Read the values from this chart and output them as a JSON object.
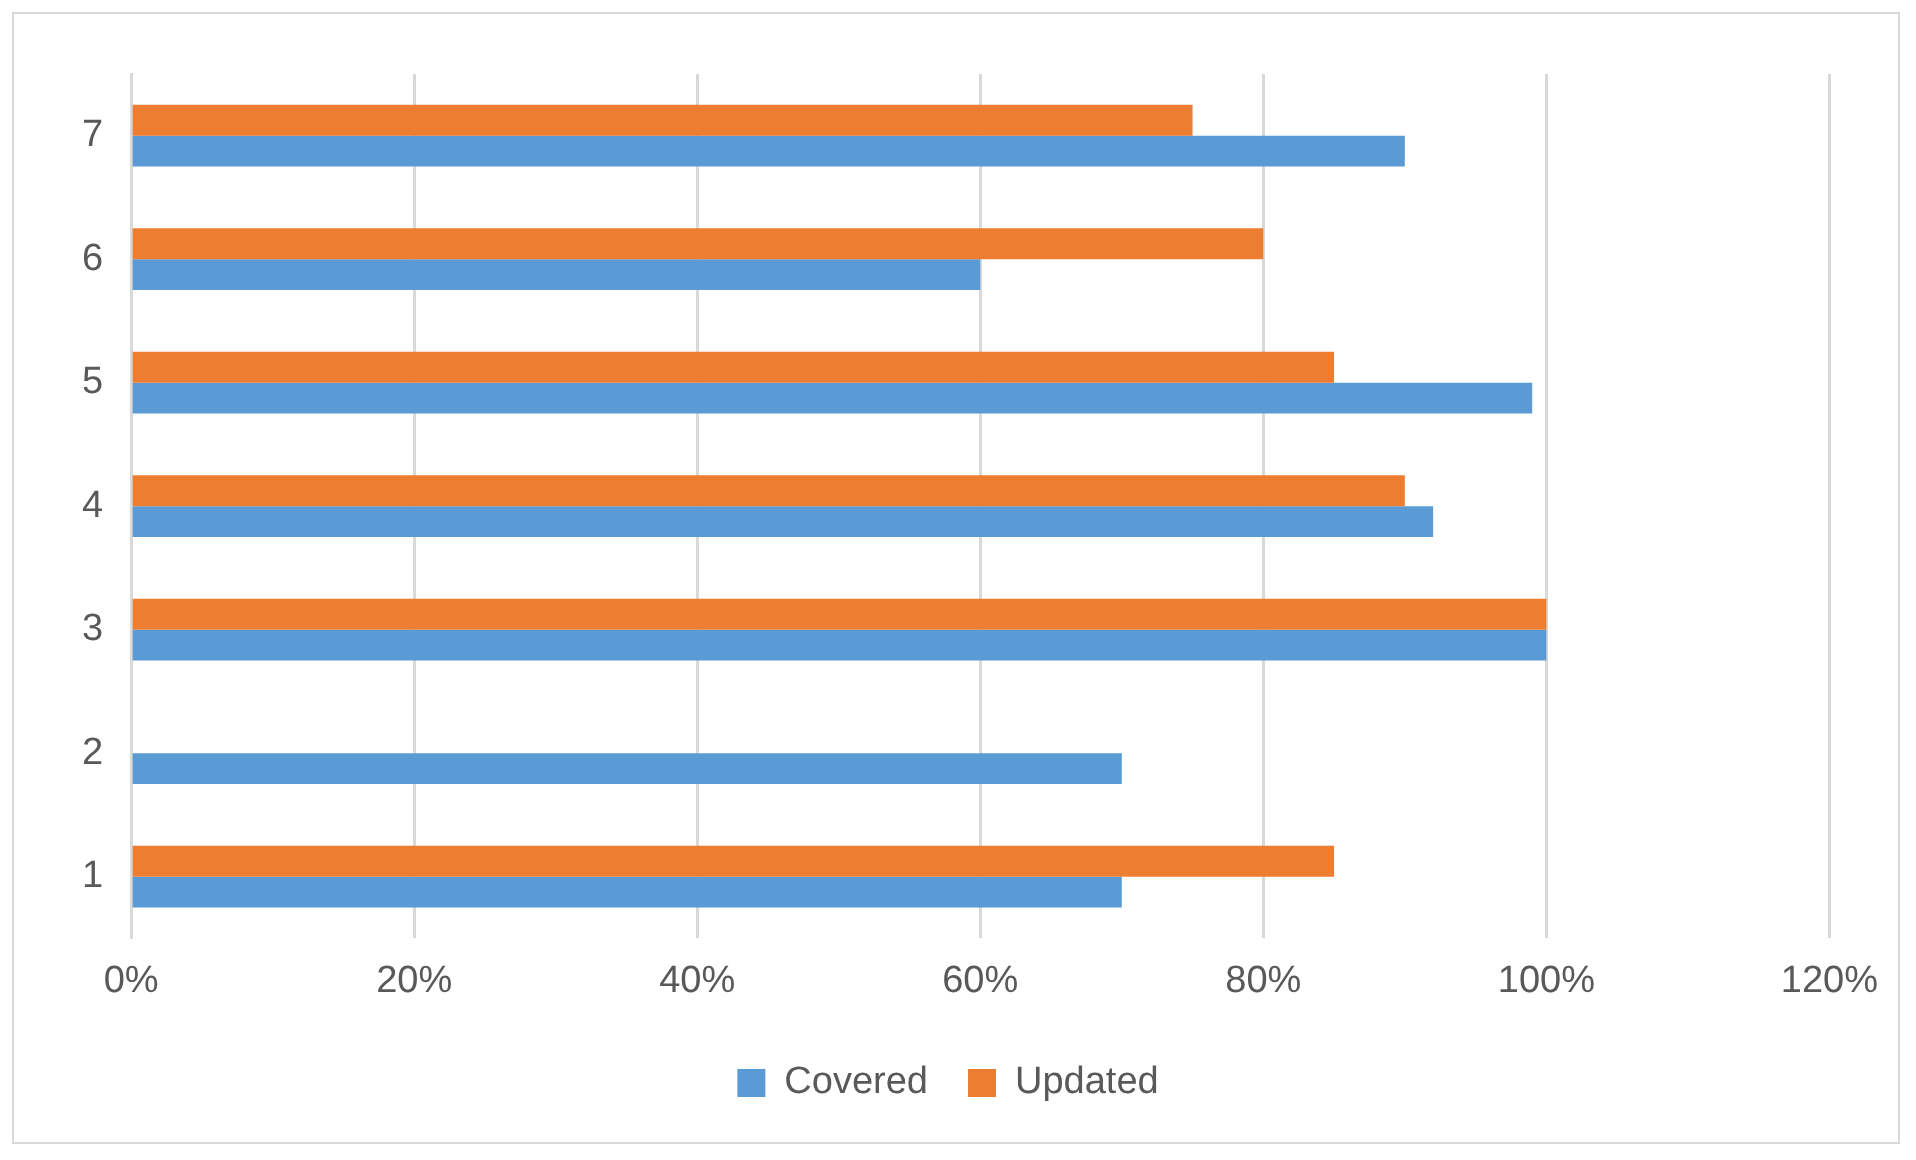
{
  "chart_data": {
    "type": "bar",
    "orientation": "horizontal",
    "categories": [
      "7",
      "6",
      "5",
      "4",
      "3",
      "2",
      "1"
    ],
    "series": [
      {
        "name": "Updated",
        "color": "#ed7d31",
        "values": [
          75,
          80,
          85,
          90,
          100,
          null,
          85
        ]
      },
      {
        "name": "Covered",
        "color": "#5b9bd5",
        "values": [
          90,
          60,
          99,
          92,
          100,
          70,
          70
        ]
      }
    ],
    "xlim": [
      0,
      120
    ],
    "xticks": [
      {
        "value": 0,
        "label": "0%"
      },
      {
        "value": 20,
        "label": "20%"
      },
      {
        "value": 40,
        "label": "40%"
      },
      {
        "value": 60,
        "label": "60%"
      },
      {
        "value": 80,
        "label": "80%"
      },
      {
        "value": 100,
        "label": "100%"
      },
      {
        "value": 120,
        "label": "120%"
      }
    ],
    "grid": "x",
    "legend": "bottom"
  }
}
